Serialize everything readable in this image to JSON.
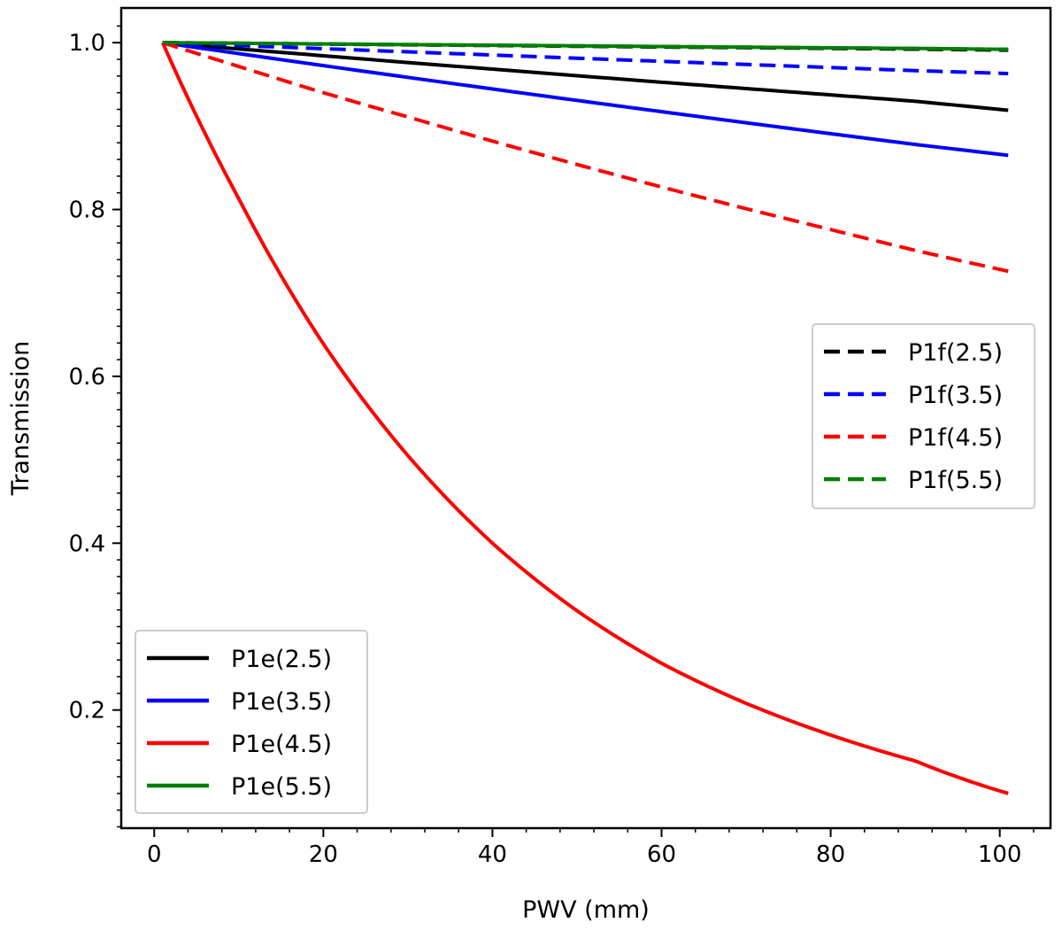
{
  "chart_data": {
    "type": "line",
    "title": "",
    "xlabel": "PWV (mm)",
    "ylabel": "Transmission",
    "xlim": [
      -3.9,
      106
    ],
    "ylim": [
      0.0584,
      1.0416
    ],
    "xticks": [
      0,
      20,
      40,
      60,
      80,
      100
    ],
    "xtick_labels": [
      "0",
      "20",
      "40",
      "60",
      "80",
      "100"
    ],
    "yticks": [
      0.2,
      0.4,
      0.6,
      0.8,
      1.0
    ],
    "ytick_labels": [
      "0.2",
      "0.4",
      "0.6",
      "0.8",
      "1.0"
    ],
    "x": [
      1,
      10,
      20,
      30,
      40,
      50,
      60,
      70,
      80,
      90,
      101
    ],
    "series": [
      {
        "name": "P1e(2.5)",
        "color": "#000000",
        "style": "solid",
        "values": [
          1.0,
          0.9925,
          0.9843,
          0.9762,
          0.9683,
          0.9604,
          0.9526,
          0.945,
          0.9374,
          0.9298,
          0.919
        ]
      },
      {
        "name": "P1e(3.5)",
        "color": "#0000ff",
        "style": "solid",
        "values": [
          1.0,
          0.9869,
          0.9725,
          0.9584,
          0.9445,
          0.9308,
          0.9173,
          0.904,
          0.8909,
          0.878,
          0.865
        ]
      },
      {
        "name": "P1e(4.5)",
        "color": "#ff0000",
        "style": "solid",
        "values": [
          1.0,
          0.813,
          0.639,
          0.505,
          0.4,
          0.319,
          0.256,
          0.208,
          0.17,
          0.139,
          0.1
        ]
      },
      {
        "name": "P1e(5.5)",
        "color": "#008000",
        "style": "solid",
        "values": [
          1.0,
          0.9993,
          0.9985,
          0.9977,
          0.9969,
          0.9962,
          0.9954,
          0.9946,
          0.9938,
          0.9931,
          0.992
        ]
      },
      {
        "name": "P1f(2.5)",
        "color": "#000000",
        "style": "dashed",
        "values": [
          1.0,
          0.9992,
          0.9983,
          0.9974,
          0.9966,
          0.9957,
          0.9948,
          0.994,
          0.9931,
          0.9922,
          0.991
        ]
      },
      {
        "name": "P1f(3.5)",
        "color": "#0000ff",
        "style": "dashed",
        "values": [
          1.0,
          0.9966,
          0.9928,
          0.989,
          0.9852,
          0.9814,
          0.9776,
          0.9739,
          0.9702,
          0.9665,
          0.963
        ]
      },
      {
        "name": "P1f(4.5)",
        "color": "#ff0000",
        "style": "dashed",
        "values": [
          1.0,
          0.9715,
          0.94,
          0.911,
          0.882,
          0.854,
          0.827,
          0.801,
          0.776,
          0.751,
          0.726
        ]
      },
      {
        "name": "P1f(5.5)",
        "color": "#008000",
        "style": "dashed",
        "values": [
          1.0,
          0.9993,
          0.9985,
          0.9977,
          0.9969,
          0.9962,
          0.9954,
          0.9946,
          0.9938,
          0.9931,
          0.992
        ]
      }
    ],
    "legends": [
      {
        "placement": "center-right",
        "entries": [
          "P1f(2.5)",
          "P1f(3.5)",
          "P1f(4.5)",
          "P1f(5.5)"
        ]
      },
      {
        "placement": "lower-left",
        "entries": [
          "P1e(2.5)",
          "P1e(3.5)",
          "P1e(4.5)",
          "P1e(5.5)"
        ]
      }
    ],
    "grid": false
  }
}
